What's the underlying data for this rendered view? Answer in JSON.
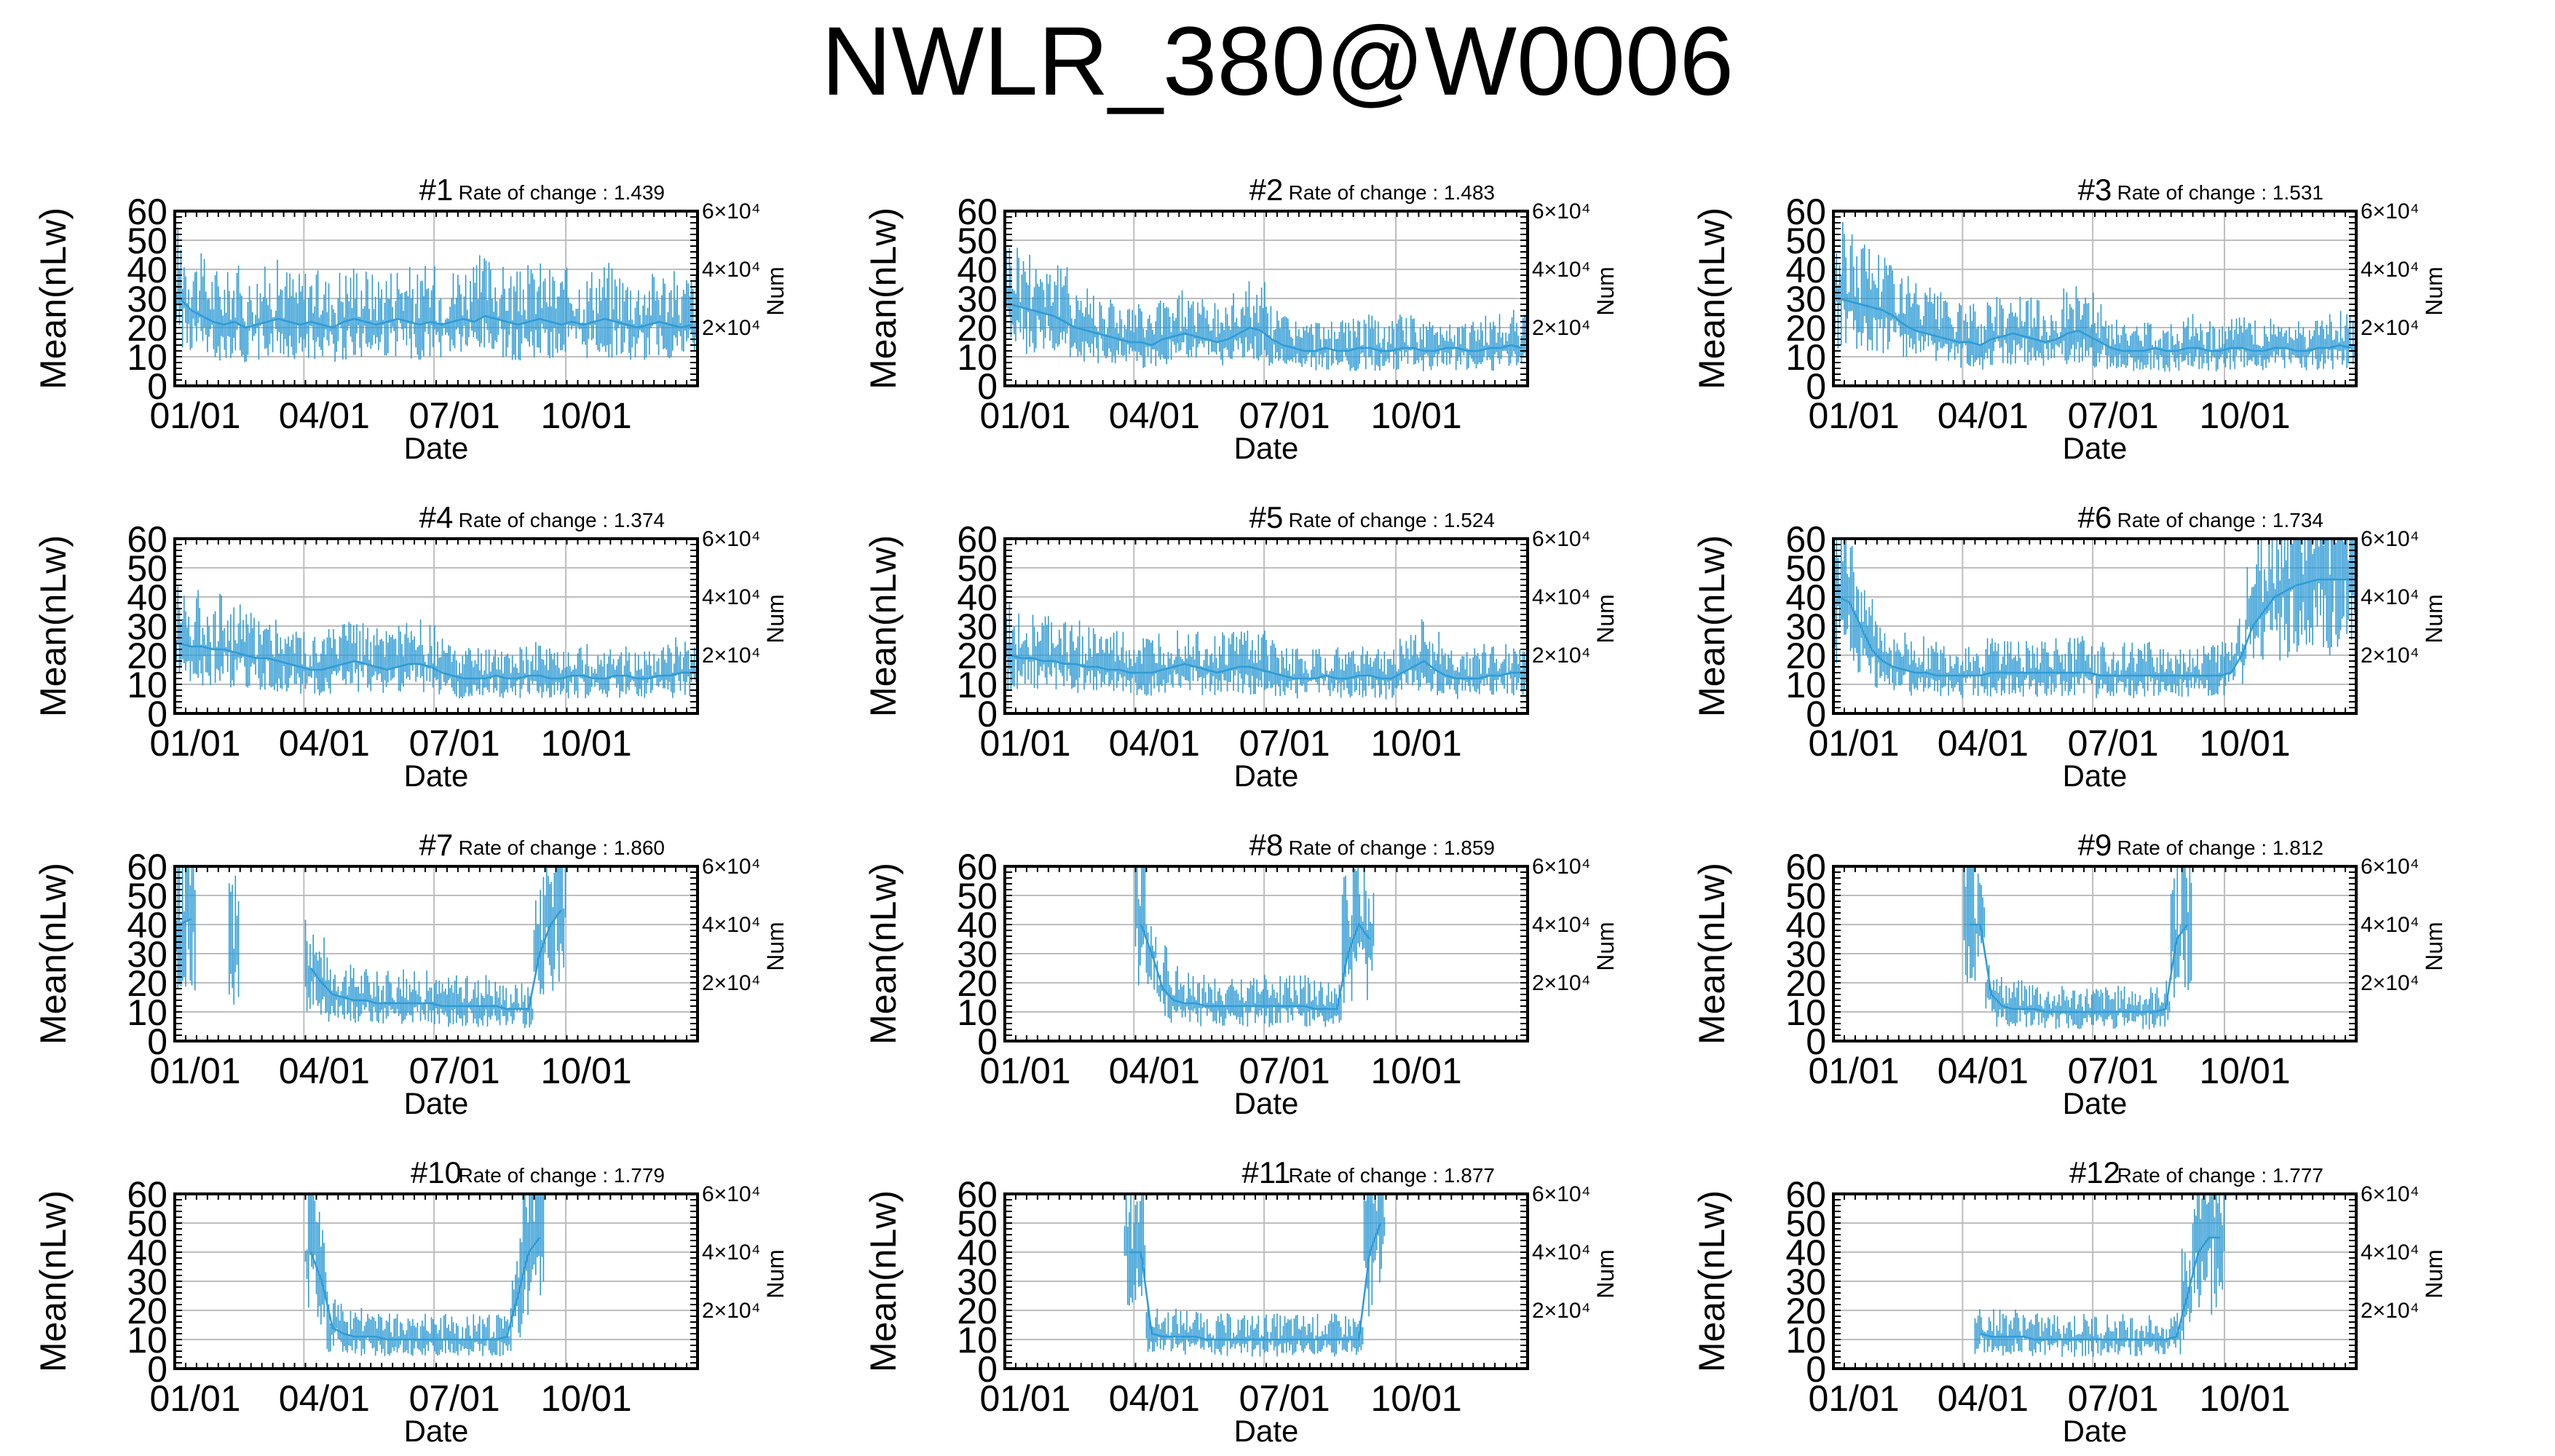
{
  "title": "NWLR_380@W0006",
  "common": {
    "ylabel": "Mean(nLw)",
    "xlabel": "Date",
    "y2label": "Num",
    "x_ticks": [
      "01/01",
      "04/01",
      "07/01",
      "10/01"
    ],
    "y_ticks": [
      "0",
      "10",
      "20",
      "30",
      "40",
      "50",
      "60"
    ],
    "y2_ticks": [
      "2×10⁴",
      "4×10⁴",
      "6×10⁴"
    ],
    "rate_prefix": "Rate of change : ",
    "line_color": "#2f9bd5"
  },
  "chart_data": [
    {
      "type": "line",
      "title": "#1",
      "rate": "1.439",
      "ylim": [
        0,
        60
      ],
      "xlim": [
        "01/01",
        "12/31"
      ],
      "grid": true,
      "series": [
        {
          "values": [
            30,
            26,
            24,
            22,
            21,
            22,
            20,
            21,
            22,
            23,
            22,
            21,
            22,
            21,
            20,
            22,
            23,
            22,
            21,
            22,
            23,
            22,
            21,
            22,
            21,
            22,
            23,
            22,
            24,
            23,
            22,
            21,
            22,
            23,
            22,
            21,
            22,
            21,
            22,
            23,
            22,
            21,
            20,
            21,
            22,
            21,
            20,
            21
          ]
        }
      ]
    },
    {
      "type": "line",
      "title": "#2",
      "rate": "1.483",
      "ylim": [
        0,
        60
      ],
      "xlim": [
        "01/01",
        "12/31"
      ],
      "grid": true,
      "series": [
        {
          "values": [
            28,
            27,
            26,
            25,
            24,
            22,
            20,
            19,
            18,
            17,
            16,
            15,
            15,
            14,
            16,
            17,
            18,
            17,
            16,
            15,
            16,
            18,
            20,
            19,
            16,
            14,
            13,
            12,
            12,
            13,
            12,
            12,
            13,
            13,
            12,
            12,
            13,
            13,
            12,
            12,
            13,
            13,
            12,
            12,
            13,
            13,
            14,
            13
          ]
        }
      ]
    },
    {
      "type": "line",
      "title": "#3",
      "rate": "1.531",
      "ylim": [
        0,
        60
      ],
      "xlim": [
        "01/01",
        "12/31"
      ],
      "grid": true,
      "series": [
        {
          "values": [
            30,
            29,
            28,
            27,
            26,
            24,
            21,
            19,
            18,
            17,
            16,
            15,
            15,
            14,
            16,
            17,
            18,
            17,
            16,
            15,
            16,
            18,
            19,
            17,
            15,
            13,
            12,
            12,
            12,
            13,
            12,
            12,
            13,
            13,
            12,
            12,
            13,
            13,
            12,
            12,
            13,
            13,
            12,
            12,
            13,
            13,
            14,
            13
          ]
        }
      ]
    },
    {
      "type": "line",
      "title": "#4",
      "rate": "1.374",
      "ylim": [
        0,
        60
      ],
      "xlim": [
        "01/01",
        "12/31"
      ],
      "grid": true,
      "series": [
        {
          "values": [
            24,
            23,
            23,
            22,
            22,
            21,
            20,
            19,
            19,
            18,
            17,
            16,
            15,
            15,
            16,
            17,
            18,
            17,
            16,
            15,
            16,
            17,
            17,
            16,
            14,
            13,
            12,
            12,
            12,
            13,
            12,
            12,
            13,
            13,
            12,
            12,
            13,
            13,
            12,
            12,
            13,
            13,
            12,
            12,
            13,
            13,
            14,
            14
          ]
        }
      ]
    },
    {
      "type": "line",
      "title": "#5",
      "rate": "1.524",
      "ylim": [
        0,
        60
      ],
      "xlim": [
        "01/01",
        "12/31"
      ],
      "grid": true,
      "series": [
        {
          "values": [
            20,
            19,
            19,
            18,
            18,
            17,
            17,
            16,
            16,
            15,
            15,
            14,
            14,
            14,
            15,
            16,
            17,
            16,
            15,
            14,
            15,
            16,
            16,
            15,
            14,
            13,
            12,
            12,
            12,
            13,
            12,
            12,
            13,
            13,
            12,
            12,
            14,
            16,
            18,
            15,
            13,
            12,
            12,
            12,
            13,
            13,
            14,
            14
          ]
        }
      ]
    },
    {
      "type": "line",
      "title": "#6",
      "rate": "1.734",
      "ylim": [
        0,
        60
      ],
      "xlim": [
        "01/01",
        "12/31"
      ],
      "grid": true,
      "series": [
        {
          "values": [
            40,
            38,
            30,
            22,
            18,
            16,
            15,
            14,
            14,
            13,
            13,
            13,
            13,
            13,
            14,
            14,
            14,
            14,
            14,
            14,
            14,
            14,
            14,
            14,
            13,
            13,
            13,
            13,
            13,
            13,
            13,
            13,
            13,
            13,
            13,
            13,
            14,
            20,
            30,
            35,
            40,
            42,
            44,
            45,
            46,
            46,
            46,
            46
          ]
        }
      ]
    },
    {
      "type": "line",
      "title": "#7",
      "rate": "1.860",
      "ylim": [
        0,
        60
      ],
      "xlim": [
        "01/01",
        "12/31"
      ],
      "grid": true,
      "series": [
        {
          "values": [
            40,
            42,
            null,
            null,
            null,
            30,
            null,
            null,
            null,
            null,
            null,
            null,
            25,
            20,
            16,
            15,
            14,
            14,
            13,
            13,
            13,
            13,
            13,
            13,
            12,
            12,
            12,
            12,
            12,
            12,
            11,
            11,
            11,
            30,
            40,
            45,
            null,
            null,
            null,
            null,
            null,
            null,
            null,
            null,
            null,
            null,
            null,
            null
          ]
        }
      ]
    },
    {
      "type": "line",
      "title": "#8",
      "rate": "1.859",
      "ylim": [
        0,
        60
      ],
      "xlim": [
        "01/01",
        "12/31"
      ],
      "grid": true,
      "series": [
        {
          "values": [
            null,
            null,
            null,
            null,
            null,
            null,
            null,
            null,
            null,
            null,
            null,
            null,
            40,
            30,
            18,
            14,
            13,
            13,
            12,
            12,
            12,
            12,
            12,
            12,
            12,
            12,
            12,
            12,
            11,
            11,
            11,
            30,
            40,
            35,
            null,
            null,
            null,
            null,
            null,
            null,
            null,
            null,
            null,
            null,
            null,
            null,
            null,
            null
          ]
        }
      ]
    },
    {
      "type": "line",
      "title": "#9",
      "rate": "1.812",
      "ylim": [
        0,
        60
      ],
      "xlim": [
        "01/01",
        "12/31"
      ],
      "grid": true,
      "series": [
        {
          "values": [
            null,
            null,
            null,
            null,
            null,
            null,
            null,
            null,
            null,
            null,
            null,
            null,
            40,
            40,
            16,
            12,
            11,
            11,
            11,
            10,
            10,
            10,
            10,
            10,
            10,
            10,
            10,
            10,
            10,
            10,
            11,
            35,
            40,
            null,
            null,
            null,
            null,
            null,
            null,
            null,
            null,
            null,
            null,
            null,
            null,
            null,
            null,
            null
          ]
        }
      ]
    },
    {
      "type": "line",
      "title": "#10",
      "rate": "1.779",
      "ylim": [
        0,
        60
      ],
      "xlim": [
        "01/01",
        "12/31"
      ],
      "grid": true,
      "series": [
        {
          "values": [
            null,
            null,
            null,
            null,
            null,
            null,
            null,
            null,
            null,
            null,
            null,
            null,
            40,
            30,
            14,
            12,
            11,
            11,
            11,
            10,
            10,
            10,
            10,
            10,
            10,
            10,
            10,
            10,
            10,
            10,
            11,
            25,
            40,
            45,
            null,
            null,
            null,
            null,
            null,
            null,
            null,
            null,
            null,
            null,
            null,
            null,
            null,
            null
          ]
        }
      ]
    },
    {
      "type": "line",
      "title": "#11",
      "rate": "1.877",
      "ylim": [
        0,
        60
      ],
      "xlim": [
        "01/01",
        "12/31"
      ],
      "grid": true,
      "series": [
        {
          "values": [
            null,
            null,
            null,
            null,
            null,
            null,
            null,
            null,
            null,
            null,
            null,
            40,
            40,
            12,
            11,
            11,
            11,
            11,
            10,
            10,
            10,
            10,
            10,
            10,
            10,
            10,
            10,
            10,
            10,
            10,
            10,
            10,
            10,
            40,
            50,
            null,
            null,
            null,
            null,
            null,
            null,
            null,
            null,
            null,
            null,
            null,
            null,
            null
          ]
        }
      ]
    },
    {
      "type": "line",
      "title": "#12",
      "rate": "1.777",
      "ylim": [
        0,
        60
      ],
      "xlim": [
        "01/01",
        "12/31"
      ],
      "grid": true,
      "series": [
        {
          "values": [
            null,
            null,
            null,
            null,
            null,
            null,
            null,
            null,
            null,
            null,
            null,
            null,
            null,
            12,
            11,
            11,
            11,
            11,
            10,
            10,
            10,
            10,
            10,
            10,
            10,
            10,
            10,
            10,
            10,
            10,
            10,
            11,
            25,
            40,
            45,
            45,
            null,
            null,
            null,
            null,
            null,
            null,
            null,
            null,
            null,
            null,
            null,
            null
          ]
        }
      ]
    }
  ]
}
